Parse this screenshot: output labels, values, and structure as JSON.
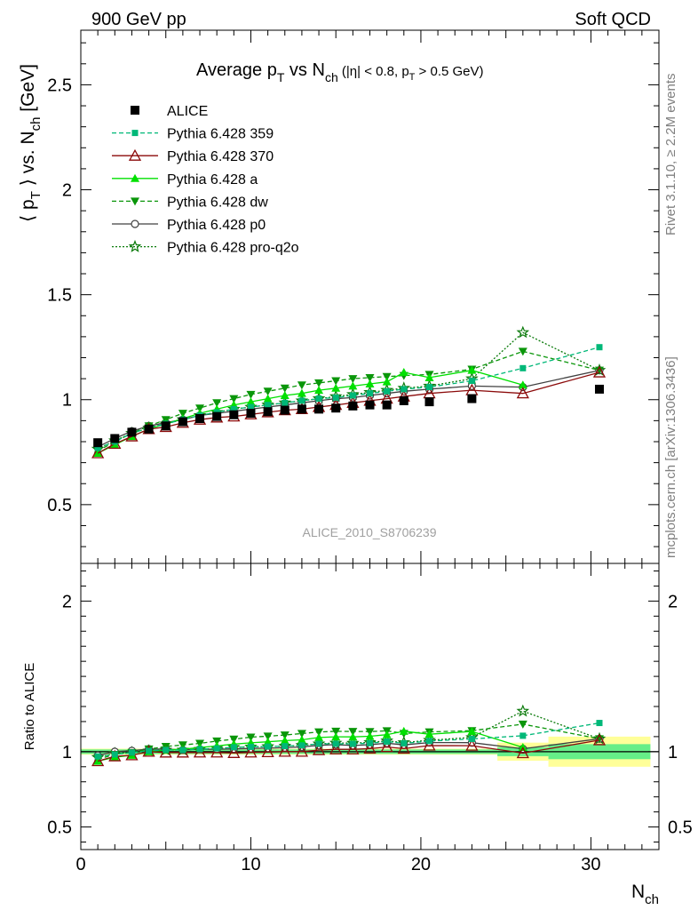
{
  "header": {
    "left": "900 GeV pp",
    "right": "Soft QCD"
  },
  "side_labels": {
    "rivet": "Rivet 3.1.10, ≥ 2.2M events",
    "mcplots": "mcplots.cern.ch [arXiv:1306.3436]"
  },
  "analysis_id": "ALICE_2010_S8706239",
  "chart_data": [
    {
      "type": "line",
      "title_parts": {
        "a": "Average p",
        "a_sub": "T",
        "b": " vs N",
        "b_sub": "ch",
        "cut1": " (|η| < 0.8, p",
        "cut1_sub": "T",
        "cut2": " > 0.5 GeV)"
      },
      "ylabel_parts": {
        "a": "⟨ p",
        "a_sub": "T",
        "b": " ⟩ vs. N",
        "b_sub": "ch",
        "c": " [GeV]"
      },
      "xlabel_parts": {
        "a": "N",
        "a_sub": "ch"
      },
      "xlim": [
        0,
        34
      ],
      "ylim": [
        0.22,
        2.76
      ],
      "yticks": [
        0.5,
        1,
        1.5,
        2,
        2.5
      ],
      "ytick_labels": [
        "0.5",
        "1",
        "1.5",
        "2",
        "2.5"
      ],
      "xticks": [
        0,
        10,
        20,
        30
      ],
      "xtick_labels": [
        "0",
        "10",
        "20",
        "30"
      ],
      "legend_position": "top-left",
      "x": [
        1,
        2,
        3,
        4,
        5,
        6,
        7,
        8,
        9,
        10,
        11,
        12,
        13,
        14,
        15,
        16,
        17,
        18,
        19,
        20.5,
        23,
        26,
        30.5
      ],
      "series": [
        {
          "name": "ALICE",
          "color": "#000000",
          "marker": "square",
          "style": "none",
          "values": [
            0.795,
            0.815,
            0.845,
            0.86,
            0.875,
            0.895,
            0.91,
            0.92,
            0.928,
            0.935,
            0.943,
            0.95,
            0.955,
            0.955,
            0.96,
            0.97,
            0.975,
            0.975,
            0.995,
            0.99,
            1.005,
            null,
            1.05
          ]
        },
        {
          "name": "Pythia 6.428 359",
          "color": "#00b878",
          "marker": "small-square",
          "style": "dashed",
          "values": [
            0.77,
            0.8,
            0.84,
            0.865,
            0.885,
            0.905,
            0.925,
            0.94,
            0.955,
            0.965,
            0.975,
            0.985,
            0.995,
            1.005,
            1.01,
            1.02,
            1.03,
            1.04,
            1.05,
            1.06,
            1.09,
            1.15,
            1.25
          ]
        },
        {
          "name": "Pythia 6.428 370",
          "color": "#8b0a0a",
          "marker": "open-triangle",
          "style": "solid",
          "values": [
            0.745,
            0.79,
            0.825,
            0.86,
            0.87,
            0.89,
            0.905,
            0.915,
            0.92,
            0.93,
            0.94,
            0.95,
            0.955,
            0.965,
            0.975,
            0.985,
            0.995,
            1.005,
            1.015,
            1.03,
            1.045,
            1.03,
            1.13
          ]
        },
        {
          "name": "Pythia 6.428 a",
          "color": "#00e000",
          "marker": "triangle",
          "style": "solid",
          "values": [
            0.745,
            0.785,
            0.825,
            0.86,
            0.885,
            0.91,
            0.935,
            0.955,
            0.975,
            0.99,
            1.005,
            1.02,
            1.03,
            1.045,
            1.055,
            1.065,
            1.075,
            1.085,
            1.13,
            1.105,
            1.14,
            1.07,
            null
          ]
        },
        {
          "name": "Pythia 6.428 dw",
          "color": "#0a960a",
          "marker": "triangle-down",
          "style": "dashed",
          "values": [
            0.755,
            0.8,
            0.84,
            0.875,
            0.905,
            0.935,
            0.96,
            0.985,
            1.005,
            1.025,
            1.04,
            1.055,
            1.07,
            1.08,
            1.09,
            1.1,
            1.105,
            1.11,
            1.115,
            1.12,
            1.145,
            1.23,
            1.14
          ]
        },
        {
          "name": "Pythia 6.428 p0",
          "color": "#404040",
          "marker": "open-circle",
          "style": "solid",
          "values": [
            0.775,
            0.815,
            0.85,
            0.875,
            0.89,
            0.905,
            0.925,
            0.935,
            0.945,
            0.955,
            0.965,
            0.975,
            0.985,
            0.995,
            1.005,
            1.01,
            1.02,
            1.03,
            1.04,
            1.05,
            1.065,
            1.06,
            1.14
          ]
        },
        {
          "name": "Pythia 6.428 pro-q2o",
          "color": "#0a7a0a",
          "marker": "open-star",
          "style": "dotted",
          "values": [
            0.765,
            0.805,
            0.84,
            0.865,
            0.885,
            0.905,
            0.925,
            0.94,
            0.955,
            0.965,
            0.975,
            0.985,
            0.995,
            1.005,
            1.015,
            1.025,
            1.035,
            1.045,
            1.055,
            1.065,
            1.1,
            1.32,
            1.14
          ]
        }
      ]
    },
    {
      "type": "line",
      "ylabel": "Ratio to ALICE",
      "ylim": [
        0.35,
        2.25
      ],
      "yticks": [
        0.5,
        1,
        2
      ],
      "ytick_labels": [
        "0.5",
        "1",
        "2"
      ],
      "xlim": [
        0,
        34
      ],
      "bands": {
        "green_color": "#66ee88",
        "yellow_color": "#ffff99",
        "x_edges": [
          0,
          24.5,
          27.5,
          33.5
        ],
        "green_halfwidth": [
          0.015,
          0.03,
          0.05
        ],
        "yellow_halfwidth": [
          0.02,
          0.06,
          0.1
        ]
      }
    }
  ]
}
